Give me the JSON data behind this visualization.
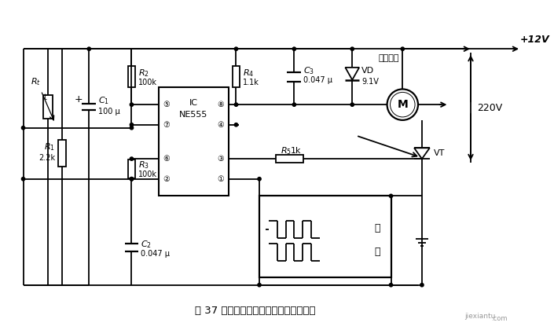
{
  "title": "图 37 电风扇自动温控调速器电路原理图",
  "bg_color": "#ffffff",
  "plus12v": "+12V",
  "voltage220": "220V",
  "fan_label": "风扇电机",
  "Rt_label": "R_t",
  "C1_val": "100 μ",
  "R2_val": "100k",
  "R3_val": "100k",
  "R1_val": "2.2k",
  "C2_val": "0.047 μ",
  "R4_val": "1.1k",
  "C3_val": "0.047 μ",
  "R5_val": "1k",
  "VD_val": "9.1V",
  "IC_val": "NE555",
  "lw": 1.3
}
